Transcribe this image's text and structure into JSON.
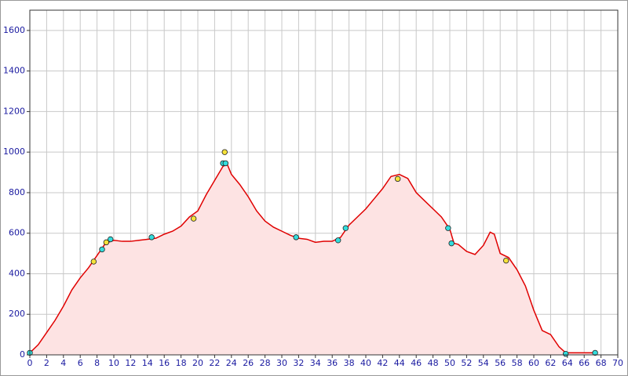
{
  "chart_data": {
    "type": "area",
    "xlim": [
      0,
      70
    ],
    "ylim": [
      0,
      1700
    ],
    "xticks": [
      0,
      2,
      4,
      6,
      8,
      10,
      12,
      14,
      16,
      18,
      20,
      22,
      24,
      26,
      28,
      30,
      32,
      34,
      36,
      38,
      40,
      42,
      44,
      46,
      48,
      50,
      52,
      54,
      56,
      58,
      60,
      62,
      64,
      66,
      68,
      70
    ],
    "yticks": [
      0,
      200,
      400,
      600,
      800,
      1000,
      1200,
      1400,
      1600
    ],
    "grid": true,
    "fill_color": "#fde3e3",
    "series": [
      {
        "kind": "line",
        "color": "#e00000",
        "x": [
          0,
          1,
          2,
          3,
          4,
          5,
          6,
          7,
          8,
          9,
          10,
          11,
          12,
          13,
          14,
          15,
          16,
          17,
          18,
          19,
          20,
          21,
          22,
          23,
          23.5,
          24,
          25,
          26,
          27,
          28,
          29,
          30,
          31,
          32,
          33,
          34,
          35,
          36,
          37,
          38,
          39,
          40,
          41,
          42,
          43,
          44,
          45,
          46,
          47,
          48,
          49,
          50,
          50.5,
          51,
          52,
          53,
          54,
          54.8,
          55.3,
          56,
          57,
          58,
          59,
          60,
          61,
          62,
          63,
          63.8,
          67.3
        ],
        "values": [
          10,
          50,
          110,
          170,
          240,
          320,
          380,
          430,
          490,
          550,
          565,
          560,
          560,
          565,
          570,
          575,
          595,
          610,
          635,
          680,
          710,
          790,
          860,
          930,
          940,
          890,
          840,
          780,
          710,
          660,
          630,
          610,
          590,
          575,
          570,
          555,
          560,
          560,
          580,
          640,
          680,
          720,
          770,
          820,
          880,
          890,
          870,
          800,
          760,
          720,
          680,
          620,
          550,
          545,
          510,
          495,
          540,
          605,
          595,
          500,
          480,
          420,
          340,
          220,
          120,
          100,
          40,
          10,
          10
        ]
      },
      {
        "kind": "points",
        "color": "#33dddd",
        "x": [
          0,
          8.6,
          9.6,
          14.5,
          23.0,
          23.3,
          31.7,
          36.7,
          37.6,
          49.8,
          50.2,
          63.8,
          67.3
        ],
        "values": [
          10,
          520,
          570,
          580,
          945,
          945,
          580,
          565,
          625,
          625,
          550,
          5,
          10
        ]
      },
      {
        "kind": "points",
        "color": "#f5e23a",
        "x": [
          7.6,
          9.1,
          19.5,
          23.2,
          43.8,
          56.7
        ],
        "values": [
          460,
          555,
          672,
          1000,
          868,
          465
        ]
      }
    ]
  }
}
